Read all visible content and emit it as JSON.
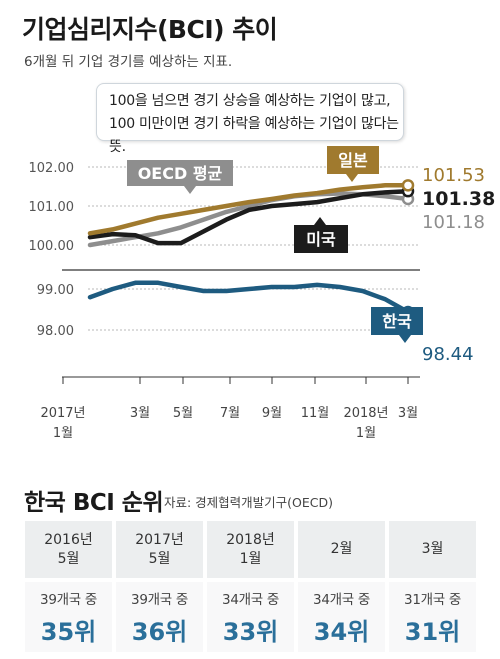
{
  "title": "기업심리지수(BCI) 추이",
  "subtitle": "6개월 뒤 기업 경기를 예상하는 지표.",
  "callout": {
    "line1": "100을 넘으면 경기 상승을 예상하는 기업이 많고,",
    "line2": "100 미만이면 경기 하락을 예상하는 기업이 많다는 뜻."
  },
  "chart_data": {
    "type": "line",
    "x_ticks": [
      {
        "line1": "2017년",
        "line2": "1월"
      },
      {
        "line1": "3월",
        "line2": ""
      },
      {
        "line1": "5월",
        "line2": ""
      },
      {
        "line1": "7월",
        "line2": ""
      },
      {
        "line1": "9월",
        "line2": ""
      },
      {
        "line1": "11월",
        "line2": ""
      },
      {
        "line1": "2018년",
        "line2": "1월"
      },
      {
        "line1": "3월",
        "line2": ""
      }
    ],
    "y_upper_ticks": [
      "102.00",
      "101.00",
      "100.00"
    ],
    "y_lower_ticks": [
      "99.00",
      "98.00"
    ],
    "series": [
      {
        "name": "일본",
        "color": "#a07a2e",
        "end_label": "101.53",
        "values": [
          100.3,
          100.4,
          100.55,
          100.7,
          100.8,
          100.9,
          101.0,
          101.1,
          101.18,
          101.27,
          101.33,
          101.42,
          101.48,
          101.53,
          101.53
        ]
      },
      {
        "name": "미국",
        "color": "#1c1c1c",
        "end_label": "101.38",
        "values": [
          100.2,
          100.28,
          100.25,
          100.05,
          100.05,
          100.35,
          100.65,
          100.9,
          101.0,
          101.05,
          101.1,
          101.2,
          101.3,
          101.35,
          101.38
        ]
      },
      {
        "name": "OECD 평균",
        "color": "#8e8e8e",
        "end_label": "101.18",
        "values": [
          100.0,
          100.1,
          100.2,
          100.3,
          100.45,
          100.65,
          100.85,
          101.0,
          101.15,
          101.25,
          101.3,
          101.32,
          101.3,
          101.25,
          101.18
        ]
      },
      {
        "name": "한국",
        "color": "#1e5b80",
        "end_label": "98.44",
        "values": [
          98.8,
          99.0,
          99.15,
          99.15,
          99.05,
          98.95,
          98.95,
          99.0,
          99.05,
          99.05,
          99.1,
          99.05,
          98.95,
          98.75,
          98.44
        ]
      }
    ]
  },
  "ranking": {
    "title": "한국 BCI 순위",
    "source": "자료: 경제협력개발기구(OECD)",
    "columns": [
      {
        "period_line1": "2016년",
        "period_line2": "5월",
        "count": "39개국 중",
        "rank": "35위"
      },
      {
        "period_line1": "2017년",
        "period_line2": "5월",
        "count": "39개국 중",
        "rank": "36위"
      },
      {
        "period_line1": "2018년",
        "period_line2": "1월",
        "count": "34개국 중",
        "rank": "33위"
      },
      {
        "period_line1": "2월",
        "period_line2": "",
        "count": "34개국 중",
        "rank": "34위"
      },
      {
        "period_line1": "3월",
        "period_line2": "",
        "count": "31개국 중",
        "rank": "31위"
      }
    ]
  }
}
